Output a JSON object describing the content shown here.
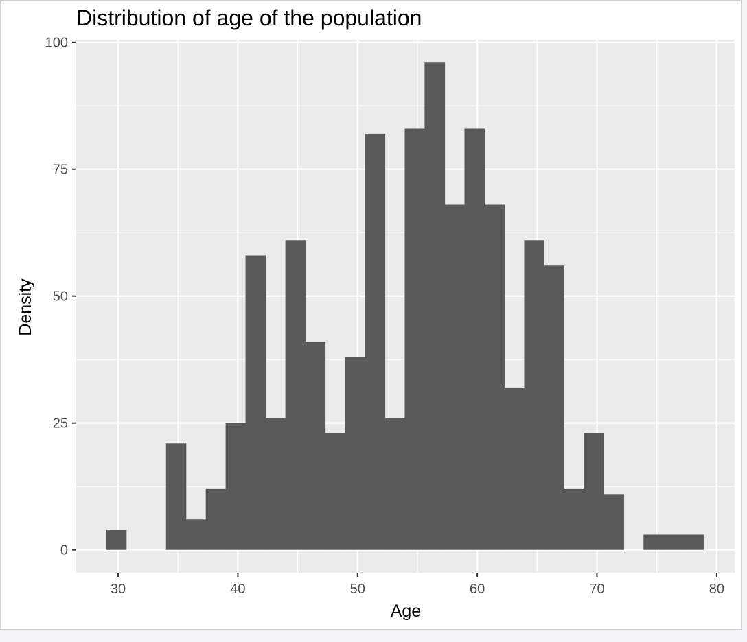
{
  "chart_data": {
    "type": "histogram",
    "title": "Distribution of age of the population",
    "xlabel": "Age",
    "ylabel": "Density",
    "xlim": [
      26.5,
      81.5
    ],
    "ylim": [
      -4.5,
      100.5
    ],
    "x_ticks": [
      30,
      40,
      50,
      60,
      70,
      80
    ],
    "y_ticks": [
      0,
      25,
      50,
      75,
      100
    ],
    "x_tick_labels": [
      "30",
      "40",
      "50",
      "60",
      "70",
      "80"
    ],
    "y_tick_labels": [
      "0",
      "25",
      "50",
      "75",
      "100"
    ],
    "grid": true,
    "bin_width": 1.662,
    "bins": [
      {
        "x0": 29.01,
        "x1": 30.67,
        "value": 4
      },
      {
        "x0": 30.67,
        "x1": 32.33,
        "value": 0
      },
      {
        "x0": 32.33,
        "x1": 34.0,
        "value": 0
      },
      {
        "x0": 34.0,
        "x1": 35.66,
        "value": 21
      },
      {
        "x0": 35.66,
        "x1": 37.32,
        "value": 6
      },
      {
        "x0": 37.32,
        "x1": 38.98,
        "value": 12
      },
      {
        "x0": 38.98,
        "x1": 40.64,
        "value": 25
      },
      {
        "x0": 40.64,
        "x1": 42.31,
        "value": 58
      },
      {
        "x0": 42.31,
        "x1": 43.97,
        "value": 26
      },
      {
        "x0": 43.97,
        "x1": 45.63,
        "value": 61
      },
      {
        "x0": 45.63,
        "x1": 47.29,
        "value": 41
      },
      {
        "x0": 47.29,
        "x1": 48.96,
        "value": 23
      },
      {
        "x0": 48.96,
        "x1": 50.62,
        "value": 38
      },
      {
        "x0": 50.62,
        "x1": 52.28,
        "value": 82
      },
      {
        "x0": 52.28,
        "x1": 53.94,
        "value": 26
      },
      {
        "x0": 53.94,
        "x1": 55.6,
        "value": 83
      },
      {
        "x0": 55.6,
        "x1": 57.27,
        "value": 96
      },
      {
        "x0": 57.27,
        "x1": 58.93,
        "value": 68
      },
      {
        "x0": 58.93,
        "x1": 60.59,
        "value": 83
      },
      {
        "x0": 60.59,
        "x1": 62.25,
        "value": 68
      },
      {
        "x0": 62.25,
        "x1": 63.92,
        "value": 32
      },
      {
        "x0": 63.92,
        "x1": 65.58,
        "value": 61
      },
      {
        "x0": 65.58,
        "x1": 67.24,
        "value": 56
      },
      {
        "x0": 67.24,
        "x1": 68.9,
        "value": 12
      },
      {
        "x0": 68.9,
        "x1": 70.56,
        "value": 23
      },
      {
        "x0": 70.56,
        "x1": 72.23,
        "value": 11
      },
      {
        "x0": 72.23,
        "x1": 73.89,
        "value": 0
      },
      {
        "x0": 73.89,
        "x1": 75.55,
        "value": 3
      },
      {
        "x0": 75.55,
        "x1": 77.21,
        "value": 3
      },
      {
        "x0": 77.21,
        "x1": 78.88,
        "value": 3
      }
    ]
  },
  "colors": {
    "panel_background": "#ebebeb",
    "grid_line": "#ffffff",
    "bar_fill": "#595959",
    "tick_mark": "#333333",
    "tick_text": "#4d4d4d",
    "title_text": "#000000",
    "figure_background": "#ffffff",
    "frame_border": "#cfd3d8",
    "outer_background": "#f3f4f6"
  }
}
